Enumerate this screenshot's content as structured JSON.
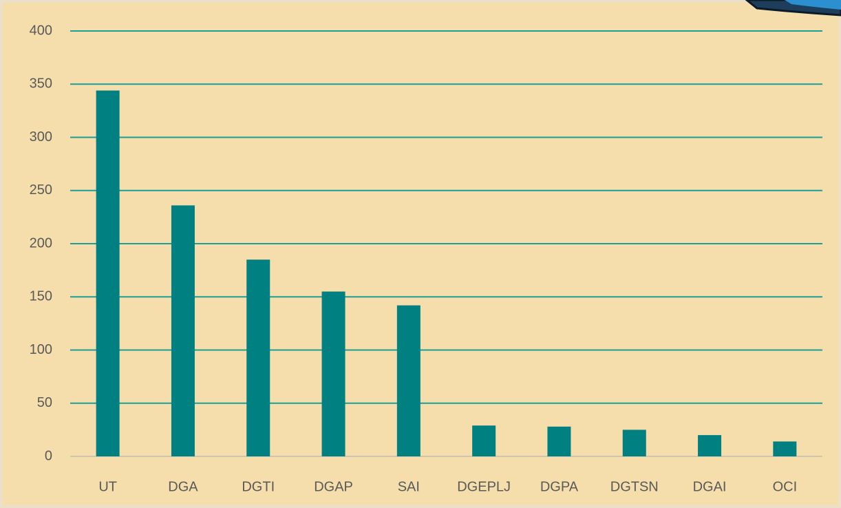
{
  "chart_data": {
    "type": "bar",
    "categories": [
      "UT",
      "DGA",
      "DGTI",
      "DGAP",
      "SAI",
      "DGEPLJ",
      "DGPA",
      "DGTSN",
      "DGAI",
      "OCI"
    ],
    "values": [
      344,
      236,
      185,
      155,
      142,
      29,
      28,
      25,
      20,
      14
    ],
    "color": "#008080",
    "ylim": [
      0,
      400
    ],
    "yticks": [
      0,
      50,
      100,
      150,
      200,
      250,
      300,
      350,
      400
    ],
    "grid": true
  }
}
